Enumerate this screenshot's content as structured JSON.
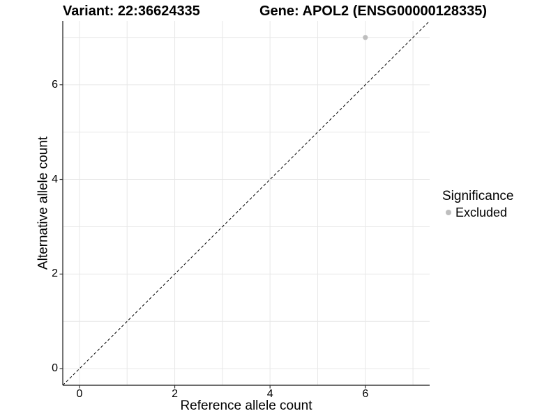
{
  "chart_data": {
    "type": "scatter",
    "title_left": "Variant: 22:36624335",
    "title_right": "Gene: APOL2 (ENSG00000128335)",
    "xlabel": "Reference allele count",
    "ylabel": "Alternative allele count",
    "xlim": [
      -0.35,
      7.35
    ],
    "ylim": [
      -0.35,
      7.35
    ],
    "x_ticks": [
      0,
      2,
      4,
      6
    ],
    "y_ticks": [
      0,
      2,
      4,
      6
    ],
    "x_gridlines": [
      0,
      1,
      2,
      3,
      4,
      5,
      6,
      7
    ],
    "y_gridlines": [
      0,
      1,
      2,
      3,
      4,
      5,
      6,
      7
    ],
    "grid": true,
    "points": [
      {
        "x": 6,
        "y": 7,
        "series": "Excluded"
      }
    ],
    "identity_line": {
      "style": "dashed",
      "from": [
        -0.35,
        -0.35
      ],
      "to": [
        7.35,
        7.35
      ]
    },
    "legend": {
      "position": "right",
      "title": "Significance",
      "items": [
        {
          "label": "Excluded",
          "color": "#bebebe"
        }
      ]
    },
    "colors": {
      "point": "#bebebe",
      "gridline": "#e7e7e7",
      "axis_line": "#3b3b3b",
      "tick_mark": "#333333",
      "dashed_line": "#000000",
      "text": "#000000",
      "background": "#ffffff"
    }
  }
}
